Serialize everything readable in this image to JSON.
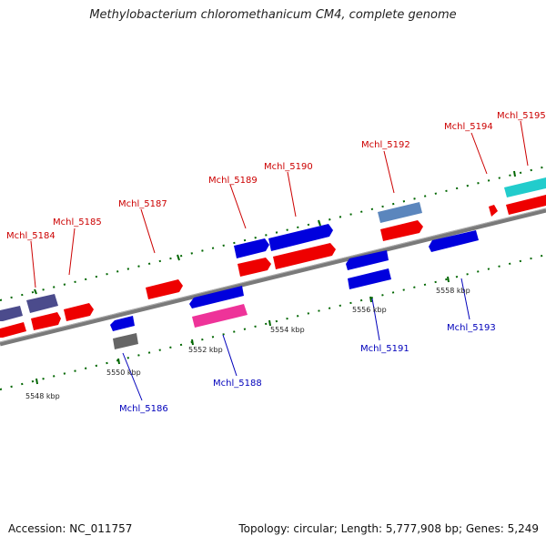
{
  "title": "Methylobacterium chloromethanicum CM4, complete genome",
  "footer": {
    "accession": "Accession: NC_011757",
    "summary": "Topology: circular; Length: 5,777,908 bp; Genes: 5,249"
  },
  "colors": {
    "forward_gene": "#ee0000",
    "reverse_gene": "#0000dd",
    "backbone": "#808080",
    "tick": "#006600",
    "label_top": "#cc0000",
    "label_bottom": "#0000bb"
  },
  "scale_ticks": [
    "5548 kbp",
    "5550 kbp",
    "5552 kbp",
    "5554 kbp",
    "5556 kbp",
    "5558 kbp"
  ],
  "gene_labels_top": [
    "Mchl_5184",
    "Mchl_5185",
    "Mchl_5187",
    "Mchl_5189",
    "Mchl_5190",
    "Mchl_5192",
    "Mchl_5194",
    "Mchl_5195"
  ],
  "gene_labels_bottom": [
    "Mchl_5186",
    "Mchl_5188",
    "Mchl_5191",
    "Mchl_5193"
  ]
}
